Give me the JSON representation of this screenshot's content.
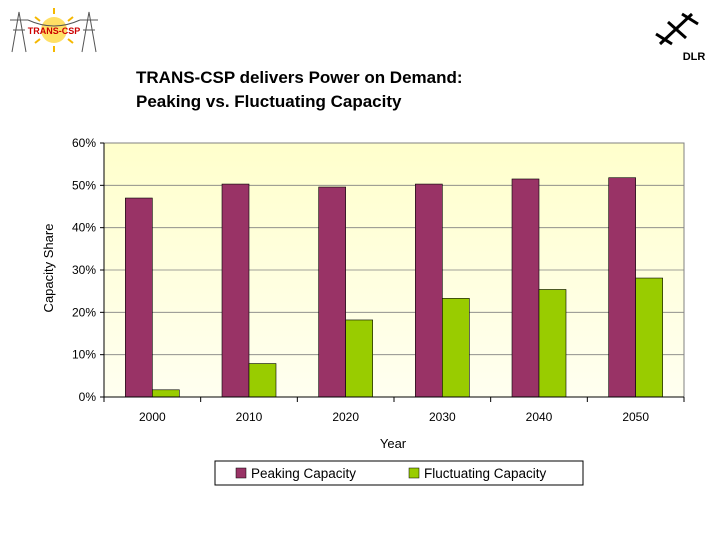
{
  "header": {
    "title_line1": "TRANS-CSP delivers Power on Demand:",
    "title_line2": "Peaking vs. Fluctuating Capacity",
    "logo_left_text": "TRANS-CSP",
    "logo_right_text": "DLR"
  },
  "colors": {
    "plot_background_top": "#ffffcc",
    "plot_background_bottom": "#fffff0",
    "peaking": "#993366",
    "fluctuating": "#99cc00",
    "logo_sun": "#f5b800",
    "logo_red": "#cc0000"
  },
  "chart_data": {
    "type": "bar",
    "title": "",
    "xlabel": "Year",
    "ylabel": "Capacity Share",
    "categories": [
      "2000",
      "2010",
      "2020",
      "2030",
      "2040",
      "2050"
    ],
    "series": [
      {
        "name": "Peaking Capacity",
        "color": "#993366",
        "values": [
          47.0,
          50.3,
          49.6,
          50.3,
          51.5,
          51.8
        ]
      },
      {
        "name": "Fluctuating Capacity",
        "color": "#99cc00",
        "values": [
          1.7,
          7.9,
          18.2,
          23.3,
          25.4,
          28.1
        ]
      }
    ],
    "ylim": [
      0,
      60
    ],
    "yticks": [
      "0%",
      "10%",
      "20%",
      "30%",
      "40%",
      "50%",
      "60%"
    ],
    "grid": true,
    "legend_position": "bottom"
  }
}
